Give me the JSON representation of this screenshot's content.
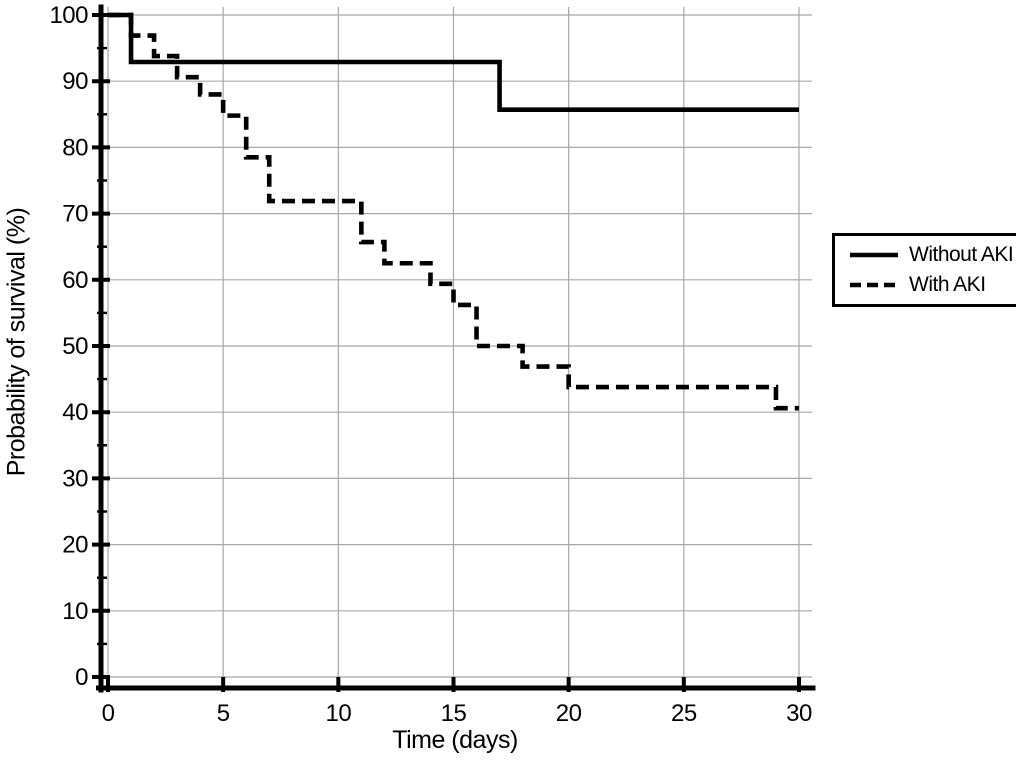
{
  "chart_data": {
    "type": "line",
    "subtype": "kaplan-meier-step",
    "title": "",
    "xlabel": "Time (days)",
    "ylabel": "Probability of survival (%)",
    "xlim": [
      0,
      30
    ],
    "ylim": [
      0,
      100
    ],
    "xticks": [
      0,
      5,
      10,
      15,
      20,
      25,
      30
    ],
    "yticks": [
      0,
      10,
      20,
      30,
      40,
      50,
      60,
      70,
      80,
      90,
      100
    ],
    "y_minor_ticks": [
      5,
      15,
      25,
      35,
      45,
      55,
      65,
      75,
      85,
      95
    ],
    "grid": true,
    "legend_position": "right-outside",
    "axis_color": "#000000",
    "grid_color": "#a8a8a8",
    "background_color": "#ffffff",
    "series": [
      {
        "name": "Without AKI",
        "style": "solid",
        "color": "#000000",
        "steps": [
          {
            "x": 0,
            "y": 100
          },
          {
            "x": 1,
            "y": 92.9
          },
          {
            "x": 17,
            "y": 85.7
          }
        ],
        "end_x": 30
      },
      {
        "name": "With AKI",
        "style": "dashed",
        "color": "#000000",
        "steps": [
          {
            "x": 0,
            "y": 100
          },
          {
            "x": 1,
            "y": 96.9
          },
          {
            "x": 2,
            "y": 93.8
          },
          {
            "x": 3,
            "y": 90.6
          },
          {
            "x": 4,
            "y": 88.0
          },
          {
            "x": 5,
            "y": 84.8
          },
          {
            "x": 6,
            "y": 78.5
          },
          {
            "x": 7,
            "y": 71.9
          },
          {
            "x": 11,
            "y": 65.7
          },
          {
            "x": 12,
            "y": 62.5
          },
          {
            "x": 14,
            "y": 59.4
          },
          {
            "x": 15,
            "y": 56.2
          },
          {
            "x": 16,
            "y": 50.0
          },
          {
            "x": 18,
            "y": 46.9
          },
          {
            "x": 20,
            "y": 43.8
          },
          {
            "x": 29,
            "y": 40.6
          }
        ],
        "end_x": 30
      }
    ]
  }
}
